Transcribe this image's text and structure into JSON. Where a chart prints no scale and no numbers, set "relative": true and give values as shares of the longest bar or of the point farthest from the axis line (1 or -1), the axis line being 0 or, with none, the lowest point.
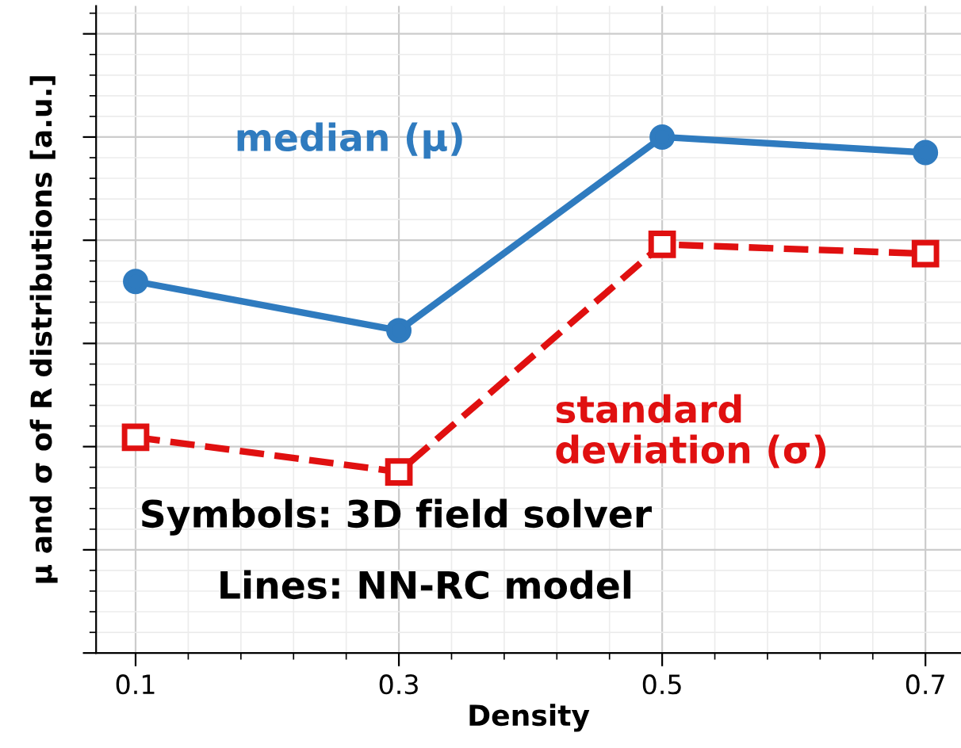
{
  "chart_data": {
    "type": "line",
    "xlabel": "Density",
    "ylabel": "μ and σ of R distributions [a.u.]",
    "x": [
      0.1,
      0.3,
      0.5,
      0.7
    ],
    "xlim": [
      0.07,
      0.727
    ],
    "xticks": [
      0.1,
      0.3,
      0.5,
      0.7
    ],
    "relative": true,
    "grid": true,
    "legend": false,
    "series": [
      {
        "name": "median (μ)",
        "color": "#2f7bbf",
        "values": [
          0.72,
          0.625,
          1.0,
          0.97
        ],
        "marker": "circle",
        "line_style": "solid"
      },
      {
        "name": "standard\ndeviation (σ)",
        "color": "#e01010",
        "values": [
          0.418,
          0.351,
          0.792,
          0.774
        ],
        "marker": "square",
        "line_style": "dashed"
      }
    ],
    "annotations": [
      "Symbols: 3D field solver",
      "Lines: NN-RC model"
    ]
  }
}
